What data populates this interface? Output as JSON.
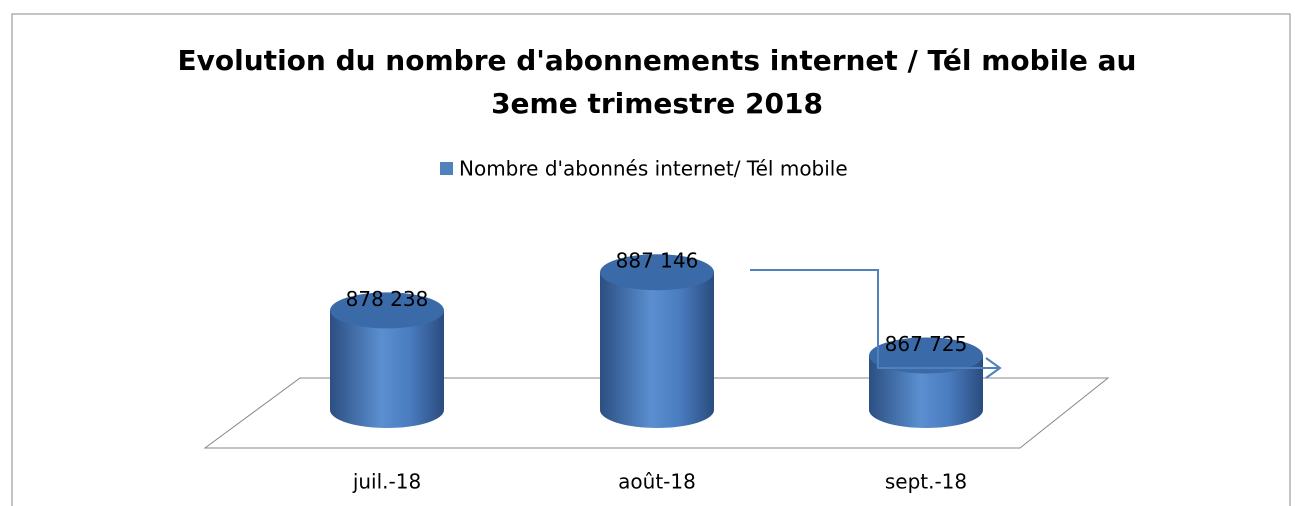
{
  "chart_data": {
    "type": "bar",
    "title": "Evolution du  nombre d'abonnements internet / Tél mobile au 3eme trimestre 2018",
    "categories": [
      "juil.-18",
      "août-18",
      "sept.-18"
    ],
    "series": [
      {
        "name": "Nombre d'abonnés internet/ Tél mobile",
        "color": "#4f81bd",
        "values": [
          878238,
          887146,
          867725
        ],
        "value_labels": [
          "878 238",
          "887 146",
          "867 725"
        ]
      }
    ],
    "ylim": [
      855000,
      890000
    ]
  }
}
